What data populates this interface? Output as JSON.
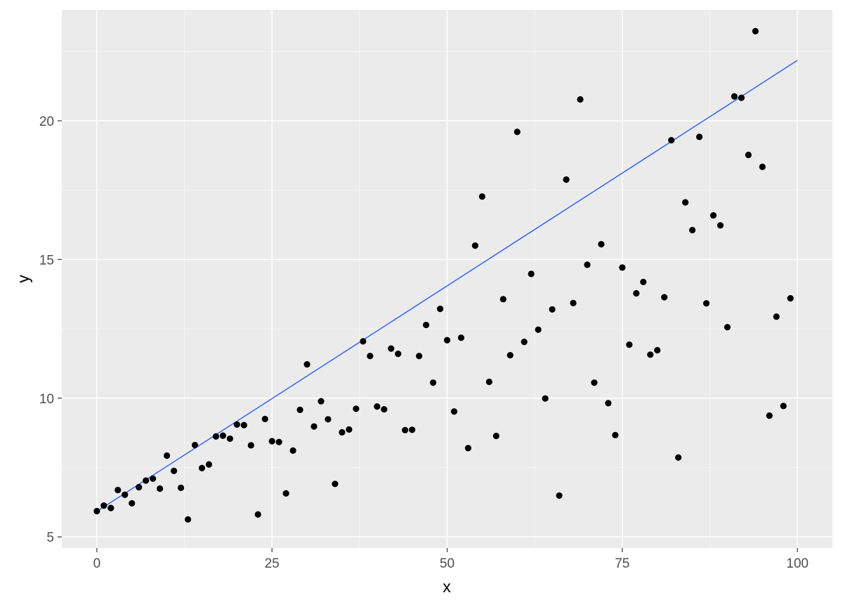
{
  "chart_data": {
    "type": "scatter",
    "title": "",
    "xlabel": "x",
    "ylabel": "y",
    "xlim": [
      -5,
      105
    ],
    "ylim": [
      4.6,
      24.0
    ],
    "x_ticks": [
      0,
      25,
      50,
      75,
      100
    ],
    "y_ticks": [
      5,
      10,
      15,
      20
    ],
    "x_minor": [
      12.5,
      37.5,
      62.5,
      87.5
    ],
    "y_minor": [
      7.5,
      12.5,
      17.5,
      22.5
    ],
    "grid": true,
    "legend": "none",
    "colors": {
      "points": "#000000",
      "fit_line": "#3366ff",
      "panel": "#ebebeb"
    },
    "points": [
      [
        0,
        5.93
      ],
      [
        1,
        6.13
      ],
      [
        2,
        6.04
      ],
      [
        3,
        6.69
      ],
      [
        4,
        6.52
      ],
      [
        5,
        6.21
      ],
      [
        6,
        6.79
      ],
      [
        7,
        7.03
      ],
      [
        8,
        7.1
      ],
      [
        9,
        6.74
      ],
      [
        10,
        7.93
      ],
      [
        11,
        7.38
      ],
      [
        12,
        6.77
      ],
      [
        13,
        5.63
      ],
      [
        14,
        8.31
      ],
      [
        15,
        7.48
      ],
      [
        16,
        7.61
      ],
      [
        17,
        8.62
      ],
      [
        18,
        8.65
      ],
      [
        19,
        8.54
      ],
      [
        20,
        9.05
      ],
      [
        21,
        9.03
      ],
      [
        22,
        8.3
      ],
      [
        23,
        5.81
      ],
      [
        24,
        9.25
      ],
      [
        25,
        8.45
      ],
      [
        26,
        8.42
      ],
      [
        27,
        6.57
      ],
      [
        28,
        8.11
      ],
      [
        29,
        9.58
      ],
      [
        30,
        11.22
      ],
      [
        31,
        8.98
      ],
      [
        32,
        9.89
      ],
      [
        33,
        9.24
      ],
      [
        34,
        6.91
      ],
      [
        35,
        8.77
      ],
      [
        36,
        8.87
      ],
      [
        37,
        9.62
      ],
      [
        38,
        12.05
      ],
      [
        39,
        11.52
      ],
      [
        40,
        9.7
      ],
      [
        41,
        9.6
      ],
      [
        42,
        11.79
      ],
      [
        43,
        11.6
      ],
      [
        44,
        8.85
      ],
      [
        45,
        8.86
      ],
      [
        46,
        11.52
      ],
      [
        47,
        12.64
      ],
      [
        48,
        10.56
      ],
      [
        49,
        13.22
      ],
      [
        50,
        12.09
      ],
      [
        51,
        9.52
      ],
      [
        52,
        12.18
      ],
      [
        53,
        8.2
      ],
      [
        54,
        15.5
      ],
      [
        55,
        17.27
      ],
      [
        56,
        10.59
      ],
      [
        57,
        8.64
      ],
      [
        58,
        13.57
      ],
      [
        59,
        11.55
      ],
      [
        60,
        19.6
      ],
      [
        61,
        12.03
      ],
      [
        62,
        14.48
      ],
      [
        63,
        12.47
      ],
      [
        64,
        9.99
      ],
      [
        65,
        13.2
      ],
      [
        66,
        6.49
      ],
      [
        67,
        17.88
      ],
      [
        68,
        13.43
      ],
      [
        69,
        20.77
      ],
      [
        70,
        14.81
      ],
      [
        71,
        10.56
      ],
      [
        72,
        15.55
      ],
      [
        73,
        9.82
      ],
      [
        74,
        8.67
      ],
      [
        75,
        14.71
      ],
      [
        76,
        11.93
      ],
      [
        77,
        13.78
      ],
      [
        78,
        14.19
      ],
      [
        79,
        11.57
      ],
      [
        80,
        11.73
      ],
      [
        81,
        13.64
      ],
      [
        82,
        19.3
      ],
      [
        83,
        7.86
      ],
      [
        84,
        17.06
      ],
      [
        85,
        16.06
      ],
      [
        86,
        19.42
      ],
      [
        87,
        13.42
      ],
      [
        88,
        16.59
      ],
      [
        89,
        16.23
      ],
      [
        90,
        12.56
      ],
      [
        91,
        20.88
      ],
      [
        92,
        20.83
      ],
      [
        93,
        18.77
      ],
      [
        94,
        23.23
      ],
      [
        95,
        18.34
      ],
      [
        96,
        9.37
      ],
      [
        97,
        12.94
      ],
      [
        98,
        9.72
      ],
      [
        99,
        13.6
      ]
    ],
    "fit_line": {
      "x": [
        0,
        100
      ],
      "y": [
        5.92,
        22.18
      ]
    }
  }
}
